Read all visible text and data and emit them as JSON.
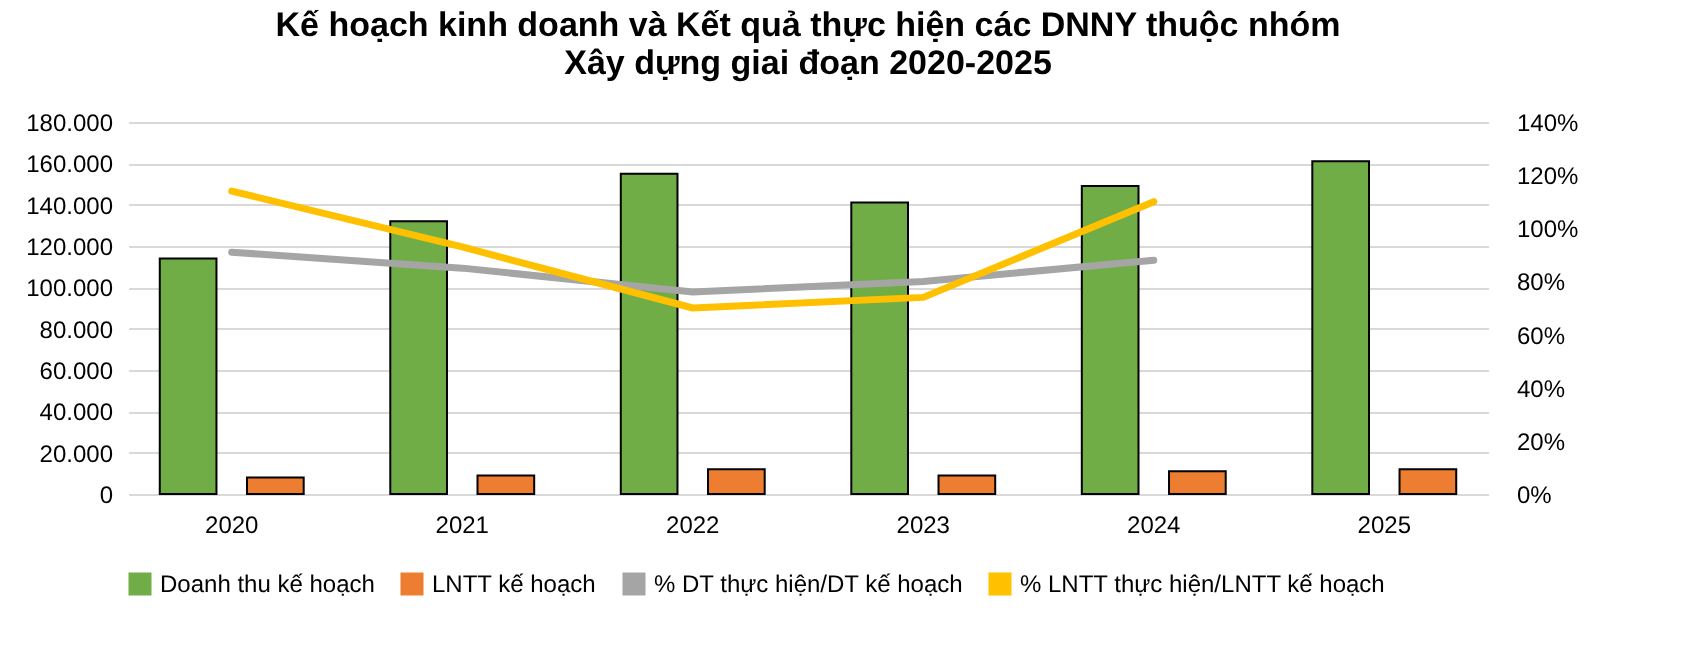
{
  "chart_data": {
    "type": "bar",
    "title": "Kế hoạch kinh doanh và Kết quả thực hiện các DNNY thuộc nhóm\nXây dựng giai đoạn 2020-2025",
    "categories": [
      "2020",
      "2021",
      "2022",
      "2023",
      "2024",
      "2025"
    ],
    "series": [
      {
        "name": "Doanh thu kế hoạch",
        "color": "#70ad47",
        "values": [
          114000,
          132000,
          155000,
          141000,
          149000,
          161000
        ]
      },
      {
        "name": "LNTT kế hoạch",
        "color": "#ed7d31",
        "values": [
          8000,
          9000,
          12000,
          9000,
          11000,
          12000
        ]
      },
      {
        "name": "% DT thực hiện/DT kế hoạch",
        "type": "line",
        "axis": "y2",
        "color": "#a5a5a5",
        "values": [
          91,
          85,
          76,
          80,
          88,
          null
        ]
      },
      {
        "name": "% LNTT thực hiện/LNTT kế hoạch",
        "type": "line",
        "axis": "y2",
        "color": "#ffc000",
        "values": [
          114,
          93,
          70,
          74,
          110,
          null
        ]
      }
    ],
    "ylim": [
      0,
      180000
    ],
    "yticks": [
      0,
      {
        "value": 20000,
        "label": "20.000"
      },
      {
        "value": 40000,
        "label": "40.000"
      },
      {
        "value": 60000,
        "label": "60.000"
      },
      {
        "value": 80000,
        "label": "80.000"
      },
      {
        "value": 100000,
        "label": "100.000"
      },
      {
        "value": 120000,
        "label": "120.000"
      },
      {
        "value": 140000,
        "label": "140.000"
      },
      {
        "value": 160000,
        "label": "160.000"
      },
      {
        "value": 180000,
        "label": "180.000"
      }
    ],
    "y2lim": [
      0,
      140
    ],
    "y2ticks": [
      {
        "value": 0,
        "label": "0%"
      },
      {
        "value": 20,
        "label": "20%"
      },
      {
        "value": 40,
        "label": "40%"
      },
      {
        "value": 60,
        "label": "60%"
      },
      {
        "value": 80,
        "label": "80%"
      },
      {
        "value": 100,
        "label": "100%"
      },
      {
        "value": 120,
        "label": "120%"
      },
      {
        "value": 140,
        "label": "140%"
      }
    ],
    "grid": "y",
    "legend": "bottom",
    "line_style": "solid",
    "marker": "none"
  }
}
